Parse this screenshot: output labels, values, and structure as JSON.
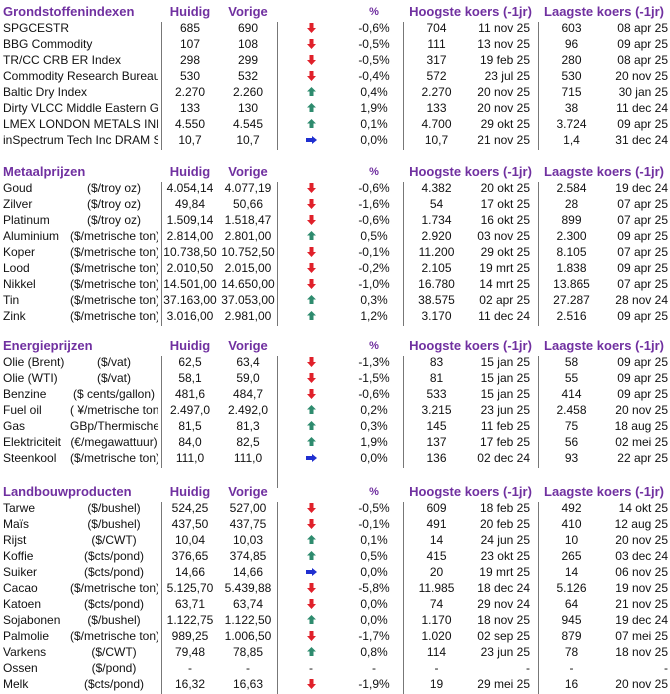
{
  "columns": {
    "current": "Huidig",
    "previous": "Vorige",
    "pct": "%",
    "high": "Hoogste koers (-1jr)",
    "low": "Laagste koers (-1jr)"
  },
  "colors": {
    "header": "#7030a0",
    "down": "#e0202a",
    "up": "#2e8b6e",
    "flat": "#1f2fd0"
  },
  "sections": [
    {
      "title": "Grondstoffenindexen",
      "rows": [
        {
          "name": "SPGCESTR",
          "unit": "",
          "current": "685",
          "previous": "690",
          "trend": "down",
          "pct": "-0,6%",
          "high": "704",
          "high_date": "11 nov 25",
          "low": "603",
          "low_date": "08 apr 25"
        },
        {
          "name": "BBG Commodity",
          "unit": "",
          "current": "107",
          "previous": "108",
          "trend": "down",
          "pct": "-0,5%",
          "high": "111",
          "high_date": "13 nov 25",
          "low": "96",
          "low_date": "09 apr 25"
        },
        {
          "name": "TR/CC CRB ER Index",
          "unit": "",
          "current": "298",
          "previous": "299",
          "trend": "down",
          "pct": "-0,5%",
          "high": "317",
          "high_date": "19 feb 25",
          "low": "280",
          "low_date": "08 apr 25"
        },
        {
          "name": "Commodity Research Bureau BLS",
          "unit": "",
          "current": "530",
          "previous": "532",
          "trend": "down",
          "pct": "-0,4%",
          "high": "572",
          "high_date": "23 jul 25",
          "low": "530",
          "low_date": "20 nov 25"
        },
        {
          "name": "Baltic Dry Index",
          "unit": "",
          "current": "2.270",
          "previous": "2.260",
          "trend": "up",
          "pct": "0,4%",
          "high": "2.270",
          "high_date": "20 nov 25",
          "low": "715",
          "low_date": "30 jan 25"
        },
        {
          "name": "Dirty VLCC Middle Eastern Gulf",
          "unit": "",
          "current": "133",
          "previous": "130",
          "trend": "up",
          "pct": "1,9%",
          "high": "133",
          "high_date": "20 nov 25",
          "low": "38",
          "low_date": "11 dec 24"
        },
        {
          "name": "LMEX LONDON METALS INDEX",
          "unit": "",
          "current": "4.550",
          "previous": "4.545",
          "trend": "up",
          "pct": "0,1%",
          "high": "4.700",
          "high_date": "29 okt 25",
          "low": "3.724",
          "low_date": "09 apr 25"
        },
        {
          "name": "inSpectrum Tech Inc DRAM Spot",
          "unit": "",
          "current": "10,7",
          "previous": "10,7",
          "trend": "flat",
          "pct": "0,0%",
          "high": "10,7",
          "high_date": "21 nov 25",
          "low": "1,4",
          "low_date": "31 dec 24"
        }
      ]
    },
    {
      "title": "Metaalprijzen",
      "rows": [
        {
          "name": "Goud",
          "unit": "($/troy oz)",
          "current": "4.054,14",
          "previous": "4.077,19",
          "trend": "down",
          "pct": "-0,6%",
          "high": "4.382",
          "high_date": "20 okt 25",
          "low": "2.584",
          "low_date": "19 dec 24"
        },
        {
          "name": "Zilver",
          "unit": "($/troy oz)",
          "current": "49,84",
          "previous": "50,66",
          "trend": "down",
          "pct": "-1,6%",
          "high": "54",
          "high_date": "17 okt 25",
          "low": "28",
          "low_date": "07 apr 25"
        },
        {
          "name": "Platinum",
          "unit": "($/troy oz)",
          "current": "1.509,14",
          "previous": "1.518,47",
          "trend": "down",
          "pct": "-0,6%",
          "high": "1.734",
          "high_date": "16 okt 25",
          "low": "899",
          "low_date": "07 apr 25"
        },
        {
          "name": "Aluminium",
          "unit": "($/metrische ton)",
          "current": "2.814,00",
          "previous": "2.801,00",
          "trend": "up",
          "pct": "0,5%",
          "high": "2.920",
          "high_date": "03 nov 25",
          "low": "2.300",
          "low_date": "09 apr 25"
        },
        {
          "name": "Koper",
          "unit": "($/metrische ton)",
          "current": "10.738,50",
          "previous": "10.752,50",
          "trend": "down",
          "pct": "-0,1%",
          "high": "11.200",
          "high_date": "29 okt 25",
          "low": "8.105",
          "low_date": "07 apr 25"
        },
        {
          "name": "Lood",
          "unit": "($/metrische ton)",
          "current": "2.010,50",
          "previous": "2.015,00",
          "trend": "down",
          "pct": "-0,2%",
          "high": "2.105",
          "high_date": "19 mrt 25",
          "low": "1.838",
          "low_date": "09 apr 25"
        },
        {
          "name": "Nikkel",
          "unit": "($/metrische ton)",
          "current": "14.501,00",
          "previous": "14.650,00",
          "trend": "down",
          "pct": "-1,0%",
          "high": "16.780",
          "high_date": "14 mrt 25",
          "low": "13.865",
          "low_date": "07 apr 25"
        },
        {
          "name": "Tin",
          "unit": "($/metrische ton)",
          "current": "37.163,00",
          "previous": "37.053,00",
          "trend": "up",
          "pct": "0,3%",
          "high": "38.575",
          "high_date": "02 apr 25",
          "low": "27.287",
          "low_date": "28 nov 24"
        },
        {
          "name": "Zink",
          "unit": "($/metrische ton)",
          "current": "3.016,00",
          "previous": "2.981,00",
          "trend": "up",
          "pct": "1,2%",
          "high": "3.170",
          "high_date": "11 dec 24",
          "low": "2.516",
          "low_date": "09 apr 25"
        }
      ]
    },
    {
      "title": "Energieprijzen",
      "rows": [
        {
          "name": "Olie (Brent)",
          "unit": "($/vat)",
          "current": "62,5",
          "previous": "63,4",
          "trend": "down",
          "pct": "-1,3%",
          "high": "83",
          "high_date": "15 jan 25",
          "low": "58",
          "low_date": "09 apr 25"
        },
        {
          "name": "Olie (WTI)",
          "unit": "($/vat)",
          "current": "58,1",
          "previous": "59,0",
          "trend": "down",
          "pct": "-1,5%",
          "high": "81",
          "high_date": "15 jan 25",
          "low": "55",
          "low_date": "09 apr 25"
        },
        {
          "name": "Benzine",
          "unit": "($ cents/gallon)",
          "current": "481,6",
          "previous": "484,7",
          "trend": "down",
          "pct": "-0,6%",
          "high": "533",
          "high_date": "15 jan 25",
          "low": "414",
          "low_date": "09 apr 25"
        },
        {
          "name": "Fuel oil",
          "unit": "( ¥/metrische ton)",
          "current": "2.497,0",
          "previous": "2.492,0",
          "trend": "up",
          "pct": "0,2%",
          "high": "3.215",
          "high_date": "23 jun 25",
          "low": "2.458",
          "low_date": "20 nov 25"
        },
        {
          "name": "Gas",
          "unit": "GBp/Thermische unit",
          "current": "81,5",
          "previous": "81,3",
          "trend": "up",
          "pct": "0,3%",
          "high": "145",
          "high_date": "11 feb 25",
          "low": "75",
          "low_date": "18 aug 25"
        },
        {
          "name": "Elektriciteit",
          "unit": "(€/megawattuur)",
          "current": "84,0",
          "previous": "82,5",
          "trend": "up",
          "pct": "1,9%",
          "high": "137",
          "high_date": "17 feb 25",
          "low": "56",
          "low_date": "02 mei 25"
        },
        {
          "name": "Steenkool",
          "unit": "($/metrische ton)",
          "current": "111,0",
          "previous": "111,0",
          "trend": "flat",
          "pct": "0,0%",
          "high": "136",
          "high_date": "02 dec 24",
          "low": "93",
          "low_date": "22 apr 25"
        }
      ]
    },
    {
      "title": "Landbouwproducten",
      "rows": [
        {
          "name": "Tarwe",
          "unit": "($/bushel)",
          "current": "524,25",
          "previous": "527,00",
          "trend": "down",
          "pct": "-0,5%",
          "high": "609",
          "high_date": "18 feb 25",
          "low": "492",
          "low_date": "14 okt 25"
        },
        {
          "name": "Maïs",
          "unit": "($/bushel)",
          "current": "437,50",
          "previous": "437,75",
          "trend": "down",
          "pct": "-0,1%",
          "high": "491",
          "high_date": "20 feb 25",
          "low": "410",
          "low_date": "12 aug 25"
        },
        {
          "name": "Rijst",
          "unit": "($/CWT)",
          "current": "10,04",
          "previous": "10,03",
          "trend": "up",
          "pct": "0,1%",
          "high": "14",
          "high_date": "24 jun 25",
          "low": "10",
          "low_date": "20 nov 25"
        },
        {
          "name": "Koffie",
          "unit": "($cts/pond)",
          "current": "376,65",
          "previous": "374,85",
          "trend": "up",
          "pct": "0,5%",
          "high": "415",
          "high_date": "23 okt 25",
          "low": "265",
          "low_date": "03 dec 24"
        },
        {
          "name": "Suiker",
          "unit": "($cts/pond)",
          "current": "14,66",
          "previous": "14,66",
          "trend": "flat",
          "pct": "0,0%",
          "high": "20",
          "high_date": "19 mrt 25",
          "low": "14",
          "low_date": "06 nov 25"
        },
        {
          "name": "Cacao",
          "unit": "($/metrische ton)",
          "current": "5.125,70",
          "previous": "5.439,88",
          "trend": "down",
          "pct": "-5,8%",
          "high": "11.985",
          "high_date": "18 dec 24",
          "low": "5.126",
          "low_date": "19 nov 25"
        },
        {
          "name": "Katoen",
          "unit": "($cts/pond)",
          "current": "63,71",
          "previous": "63,74",
          "trend": "down",
          "pct": "0,0%",
          "high": "74",
          "high_date": "29 nov 24",
          "low": "64",
          "low_date": "21 nov 25"
        },
        {
          "name": "Sojabonen",
          "unit": "($/bushel)",
          "current": "1.122,75",
          "previous": "1.122,50",
          "trend": "up",
          "pct": "0,0%",
          "high": "1.170",
          "high_date": "18 nov 25",
          "low": "945",
          "low_date": "19 dec 24"
        },
        {
          "name": "Palmolie",
          "unit": "($/metrische ton)",
          "current": "989,25",
          "previous": "1.006,50",
          "trend": "down",
          "pct": "-1,7%",
          "high": "1.020",
          "high_date": "02 sep 25",
          "low": "879",
          "low_date": "07 mei 25"
        },
        {
          "name": "Varkens",
          "unit": "($/CWT)",
          "current": "79,48",
          "previous": "78,85",
          "trend": "up",
          "pct": "0,8%",
          "high": "114",
          "high_date": "23 jun 25",
          "low": "78",
          "low_date": "18 nov 25"
        },
        {
          "name": "Ossen",
          "unit": "($/pond)",
          "current": "-",
          "previous": "-",
          "trend": "-",
          "pct": "-",
          "high": "-",
          "high_date": "-",
          "low": "-",
          "low_date": "-"
        },
        {
          "name": "Melk",
          "unit": "($cts/pond)",
          "current": "16,32",
          "previous": "16,63",
          "trend": "down",
          "pct": "-1,9%",
          "high": "19",
          "high_date": "29 mei 25",
          "low": "16",
          "low_date": "20 nov 25"
        }
      ]
    }
  ]
}
